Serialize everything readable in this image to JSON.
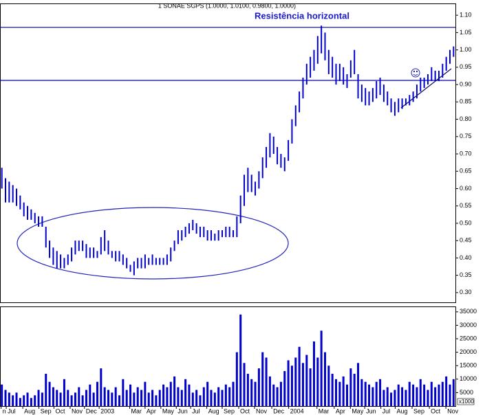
{
  "chart_data": [
    {
      "type": "hilo",
      "title": "1 SONAE SGPS (1.0000, 1.0100, 0.9800, 1.0000)",
      "annotation": "Resistência horizontal",
      "color": "#0000cc",
      "resistance_lines": [
        1.065,
        0.912
      ],
      "resistance_color": "#0000aa",
      "xlim": [
        -0.5,
        123.5
      ],
      "xticks": [
        {
          "value": -0.2,
          "label": "n"
        },
        {
          "value": 1.2,
          "label": "Jul"
        },
        {
          "value": 5.7,
          "label": "Aug"
        },
        {
          "value": 10.1,
          "label": "Sep"
        },
        {
          "value": 14.2,
          "label": "Oct"
        },
        {
          "value": 18.6,
          "label": "Nov"
        },
        {
          "value": 22.5,
          "label": "Dec"
        },
        {
          "value": 26.5,
          "label": "2003"
        },
        {
          "value": 34.8,
          "label": "Mar"
        },
        {
          "value": 39,
          "label": "Apr"
        },
        {
          "value": 43.3,
          "label": "May"
        },
        {
          "value": 47.5,
          "label": "Jun"
        },
        {
          "value": 51.4,
          "label": "Jul"
        },
        {
          "value": 55.8,
          "label": "Aug"
        },
        {
          "value": 60,
          "label": "Sep"
        },
        {
          "value": 64.5,
          "label": "Oct"
        },
        {
          "value": 68.8,
          "label": "Nov"
        },
        {
          "value": 73.5,
          "label": "Dec"
        },
        {
          "value": 78.1,
          "label": "2004"
        },
        {
          "value": 85.8,
          "label": "Mar"
        },
        {
          "value": 90.5,
          "label": "Apr"
        },
        {
          "value": 94.9,
          "label": "May"
        },
        {
          "value": 98.8,
          "label": "Jun"
        },
        {
          "value": 103.2,
          "label": "Jul"
        },
        {
          "value": 107.1,
          "label": "Aug"
        },
        {
          "value": 111.7,
          "label": "Sep"
        },
        {
          "value": 116.4,
          "label": "Oct"
        },
        {
          "value": 120.9,
          "label": "Nov"
        }
      ],
      "ylim": [
        0.272,
        1.134
      ],
      "yticks": [
        {
          "value": 0.3,
          "label": "0.30"
        },
        {
          "value": 0.35,
          "label": "0.35"
        },
        {
          "value": 0.4,
          "label": "0.40"
        },
        {
          "value": 0.45,
          "label": "0.45"
        },
        {
          "value": 0.5,
          "label": "0.50"
        },
        {
          "value": 0.55,
          "label": "0.55"
        },
        {
          "value": 0.6,
          "label": "0.60"
        },
        {
          "value": 0.65,
          "label": "0.65"
        },
        {
          "value": 0.7,
          "label": "0.70"
        },
        {
          "value": 0.75,
          "label": "0.75"
        },
        {
          "value": 0.8,
          "label": "0.80"
        },
        {
          "value": 0.85,
          "label": "0.85"
        },
        {
          "value": 0.9,
          "label": "0.90"
        },
        {
          "value": 0.95,
          "label": "0.95"
        },
        {
          "value": 1.0,
          "label": "1.00"
        },
        {
          "value": 1.05,
          "label": "1.05"
        },
        {
          "value": 1.1,
          "label": "1.10"
        }
      ],
      "high": [
        0.66,
        0.63,
        0.62,
        0.61,
        0.6,
        0.58,
        0.56,
        0.55,
        0.54,
        0.53,
        0.52,
        0.52,
        0.49,
        0.45,
        0.43,
        0.42,
        0.41,
        0.4,
        0.41,
        0.43,
        0.45,
        0.45,
        0.45,
        0.44,
        0.43,
        0.43,
        0.42,
        0.46,
        0.48,
        0.45,
        0.42,
        0.42,
        0.42,
        0.41,
        0.4,
        0.38,
        0.39,
        0.4,
        0.4,
        0.41,
        0.4,
        0.41,
        0.4,
        0.4,
        0.4,
        0.41,
        0.43,
        0.45,
        0.48,
        0.48,
        0.49,
        0.5,
        0.51,
        0.5,
        0.49,
        0.49,
        0.48,
        0.48,
        0.47,
        0.48,
        0.48,
        0.49,
        0.49,
        0.48,
        0.52,
        0.58,
        0.64,
        0.66,
        0.64,
        0.62,
        0.65,
        0.69,
        0.72,
        0.76,
        0.75,
        0.72,
        0.7,
        0.69,
        0.74,
        0.8,
        0.84,
        0.88,
        0.92,
        0.96,
        0.98,
        1.0,
        1.04,
        1.07,
        1.05,
        1.0,
        0.98,
        0.96,
        0.96,
        0.95,
        0.93,
        0.97,
        1.0,
        0.93,
        0.9,
        0.89,
        0.88,
        0.89,
        0.91,
        0.92,
        0.9,
        0.88,
        0.86,
        0.85,
        0.86,
        0.86,
        0.86,
        0.87,
        0.88,
        0.9,
        0.92,
        0.92,
        0.93,
        0.95,
        0.94,
        0.94,
        0.96,
        0.98,
        1.0,
        1.01
      ],
      "low": [
        0.6,
        0.56,
        0.56,
        0.56,
        0.55,
        0.54,
        0.52,
        0.51,
        0.51,
        0.5,
        0.49,
        0.49,
        0.43,
        0.4,
        0.38,
        0.37,
        0.37,
        0.37,
        0.38,
        0.39,
        0.41,
        0.42,
        0.42,
        0.4,
        0.4,
        0.4,
        0.4,
        0.41,
        0.42,
        0.41,
        0.4,
        0.39,
        0.39,
        0.38,
        0.37,
        0.36,
        0.35,
        0.37,
        0.37,
        0.37,
        0.38,
        0.38,
        0.38,
        0.38,
        0.38,
        0.38,
        0.39,
        0.42,
        0.44,
        0.45,
        0.46,
        0.47,
        0.48,
        0.47,
        0.46,
        0.46,
        0.45,
        0.45,
        0.45,
        0.45,
        0.46,
        0.46,
        0.46,
        0.46,
        0.46,
        0.5,
        0.55,
        0.59,
        0.59,
        0.58,
        0.6,
        0.63,
        0.66,
        0.69,
        0.7,
        0.67,
        0.66,
        0.65,
        0.68,
        0.73,
        0.78,
        0.82,
        0.86,
        0.9,
        0.92,
        0.94,
        0.96,
        0.99,
        0.97,
        0.93,
        0.92,
        0.9,
        0.91,
        0.9,
        0.89,
        0.92,
        0.93,
        0.86,
        0.85,
        0.84,
        0.84,
        0.85,
        0.86,
        0.87,
        0.85,
        0.84,
        0.82,
        0.81,
        0.82,
        0.83,
        0.84,
        0.84,
        0.85,
        0.86,
        0.88,
        0.89,
        0.9,
        0.91,
        0.91,
        0.91,
        0.92,
        0.94,
        0.96,
        0.98
      ]
    },
    {
      "type": "bar",
      "unit_label": "x1000",
      "color": "#0000cc",
      "ylim": [
        0,
        37000
      ],
      "yticks": [
        5000,
        10000,
        15000,
        20000,
        25000,
        30000,
        35000
      ],
      "values": [
        8000,
        6000,
        5000,
        4000,
        5000,
        3000,
        4000,
        5000,
        3000,
        4000,
        6000,
        5000,
        12000,
        9000,
        7000,
        6000,
        5000,
        10000,
        6000,
        4000,
        5000,
        7000,
        4000,
        6000,
        8000,
        5000,
        9000,
        14000,
        7000,
        6000,
        5000,
        7000,
        4000,
        10000,
        6000,
        8000,
        5000,
        7000,
        6000,
        9000,
        5000,
        6000,
        4000,
        6000,
        8000,
        7000,
        9000,
        11000,
        7000,
        6000,
        10000,
        8000,
        5000,
        6000,
        4000,
        7000,
        9000,
        6000,
        5000,
        7000,
        6000,
        8000,
        7000,
        9000,
        20000,
        34000,
        16000,
        12000,
        10000,
        9000,
        14000,
        20000,
        18000,
        11000,
        8000,
        7000,
        9000,
        13000,
        17000,
        15000,
        18000,
        22000,
        16000,
        19000,
        14000,
        24000,
        18000,
        28000,
        20000,
        15000,
        12000,
        10000,
        9000,
        11000,
        8000,
        14000,
        12000,
        16000,
        10000,
        9000,
        8000,
        7000,
        9000,
        10000,
        6000,
        7000,
        5000,
        6000,
        8000,
        7000,
        6000,
        9000,
        8000,
        7000,
        10000,
        8000,
        6000,
        9000,
        7000,
        8000,
        9000,
        11000,
        8000,
        10000
      ]
    }
  ]
}
